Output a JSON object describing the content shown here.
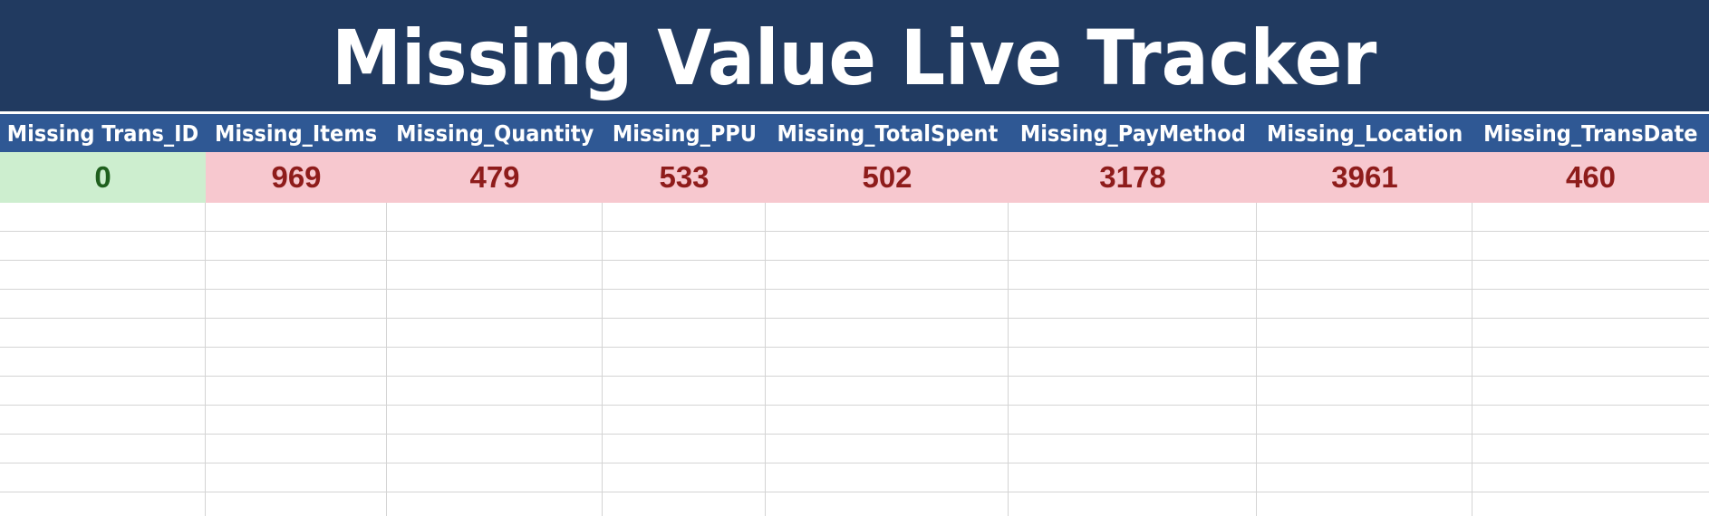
{
  "title": "Missing Value Live Tracker",
  "colors": {
    "title_bg": "#213a60",
    "header_bg": "#2f5894",
    "missing_bg": "#f7c8cf",
    "missing_text": "#8e1c1b",
    "ok_bg": "#cdeecf",
    "ok_text": "#1f5f1e",
    "gridline": "#d4d4d4"
  },
  "columns": [
    {
      "header": "Missing Trans_ID",
      "value": "0",
      "status": "ok"
    },
    {
      "header": "Missing_Items",
      "value": "969",
      "status": "missing"
    },
    {
      "header": "Missing_Quantity",
      "value": "479",
      "status": "missing"
    },
    {
      "header": "Missing_PPU",
      "value": "533",
      "status": "missing"
    },
    {
      "header": "Missing_TotalSpent",
      "value": "502",
      "status": "missing"
    },
    {
      "header": "Missing_PayMethod",
      "value": "3178",
      "status": "missing"
    },
    {
      "header": "Missing_Location",
      "value": "3961",
      "status": "missing"
    },
    {
      "header": "Missing_TransDate",
      "value": "460",
      "status": "missing"
    }
  ]
}
